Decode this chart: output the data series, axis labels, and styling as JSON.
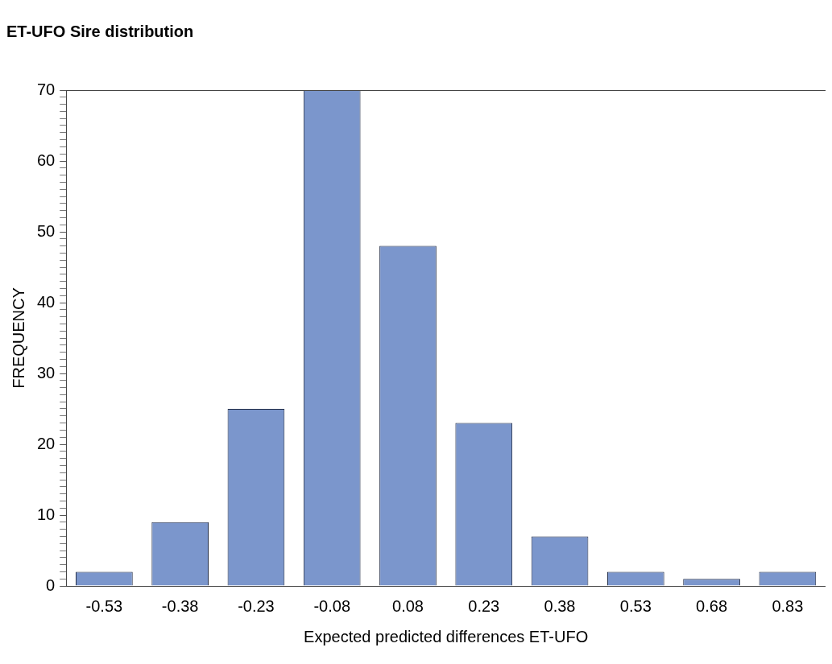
{
  "chart_data": {
    "type": "bar",
    "title": "ET-UFO Sire distribution",
    "xlabel": "Expected predicted differences ET-UFO",
    "ylabel": "FREQUENCY",
    "categories": [
      "-0.53",
      "-0.38",
      "-0.23",
      "-0.08",
      "0.08",
      "0.23",
      "0.38",
      "0.53",
      "0.68",
      "0.83"
    ],
    "values": [
      2,
      9,
      25,
      70,
      48,
      23,
      7,
      2,
      1,
      2
    ],
    "color": "#7b96cc",
    "ylim": [
      0,
      70
    ],
    "yticks": [
      0,
      {
        "value": 1,
        "label": null
      },
      {
        "value": 2,
        "label": null
      },
      {
        "value": 3,
        "label": null
      },
      {
        "value": 4,
        "label": null
      },
      {
        "value": 5,
        "label": null
      },
      {
        "value": 6,
        "label": null
      },
      {
        "value": 7,
        "label": null
      },
      {
        "value": 8,
        "label": null
      },
      {
        "value": 9,
        "label": null
      },
      10,
      {
        "value": 11,
        "label": null
      },
      {
        "value": 12,
        "label": null
      },
      {
        "value": 13,
        "label": null
      },
      {
        "value": 14,
        "label": null
      },
      {
        "value": 15,
        "label": null
      },
      {
        "value": 16,
        "label": null
      },
      {
        "value": 17,
        "label": null
      },
      {
        "value": 18,
        "label": null
      },
      {
        "value": 19,
        "label": null
      },
      20,
      {
        "value": 21,
        "label": null
      },
      {
        "value": 22,
        "label": null
      },
      {
        "value": 23,
        "label": null
      },
      {
        "value": 24,
        "label": null
      },
      {
        "value": 25,
        "label": null
      },
      {
        "value": 26,
        "label": null
      },
      {
        "value": 27,
        "label": null
      },
      {
        "value": 28,
        "label": null
      },
      {
        "value": 29,
        "label": null
      },
      30,
      {
        "value": 31,
        "label": null
      },
      {
        "value": 32,
        "label": null
      },
      {
        "value": 33,
        "label": null
      },
      {
        "value": 34,
        "label": null
      },
      {
        "value": 35,
        "label": null
      },
      {
        "value": 36,
        "label": null
      },
      {
        "value": 37,
        "label": null
      },
      {
        "value": 38,
        "label": null
      },
      {
        "value": 39,
        "label": null
      },
      40,
      {
        "value": 41,
        "label": null
      },
      {
        "value": 42,
        "label": null
      },
      {
        "value": 43,
        "label": null
      },
      {
        "value": 44,
        "label": null
      },
      {
        "value": 45,
        "label": null
      },
      {
        "value": 46,
        "label": null
      },
      {
        "value": 47,
        "label": null
      },
      {
        "value": 48,
        "label": null
      },
      {
        "value": 49,
        "label": null
      },
      50,
      {
        "value": 51,
        "label": null
      },
      {
        "value": 52,
        "label": null
      },
      {
        "value": 53,
        "label": null
      },
      {
        "value": 54,
        "label": null
      },
      {
        "value": 55,
        "label": null
      },
      {
        "value": 56,
        "label": null
      },
      {
        "value": 57,
        "label": null
      },
      {
        "value": 58,
        "label": null
      },
      {
        "value": 59,
        "label": null
      },
      60,
      {
        "value": 61,
        "label": null
      },
      {
        "value": 62,
        "label": null
      },
      {
        "value": 63,
        "label": null
      },
      {
        "value": 64,
        "label": null
      },
      {
        "value": 65,
        "label": null
      },
      {
        "value": 66,
        "label": null
      },
      {
        "value": 67,
        "label": null
      },
      {
        "value": 68,
        "label": null
      },
      {
        "value": 69,
        "label": null
      },
      70
    ]
  }
}
